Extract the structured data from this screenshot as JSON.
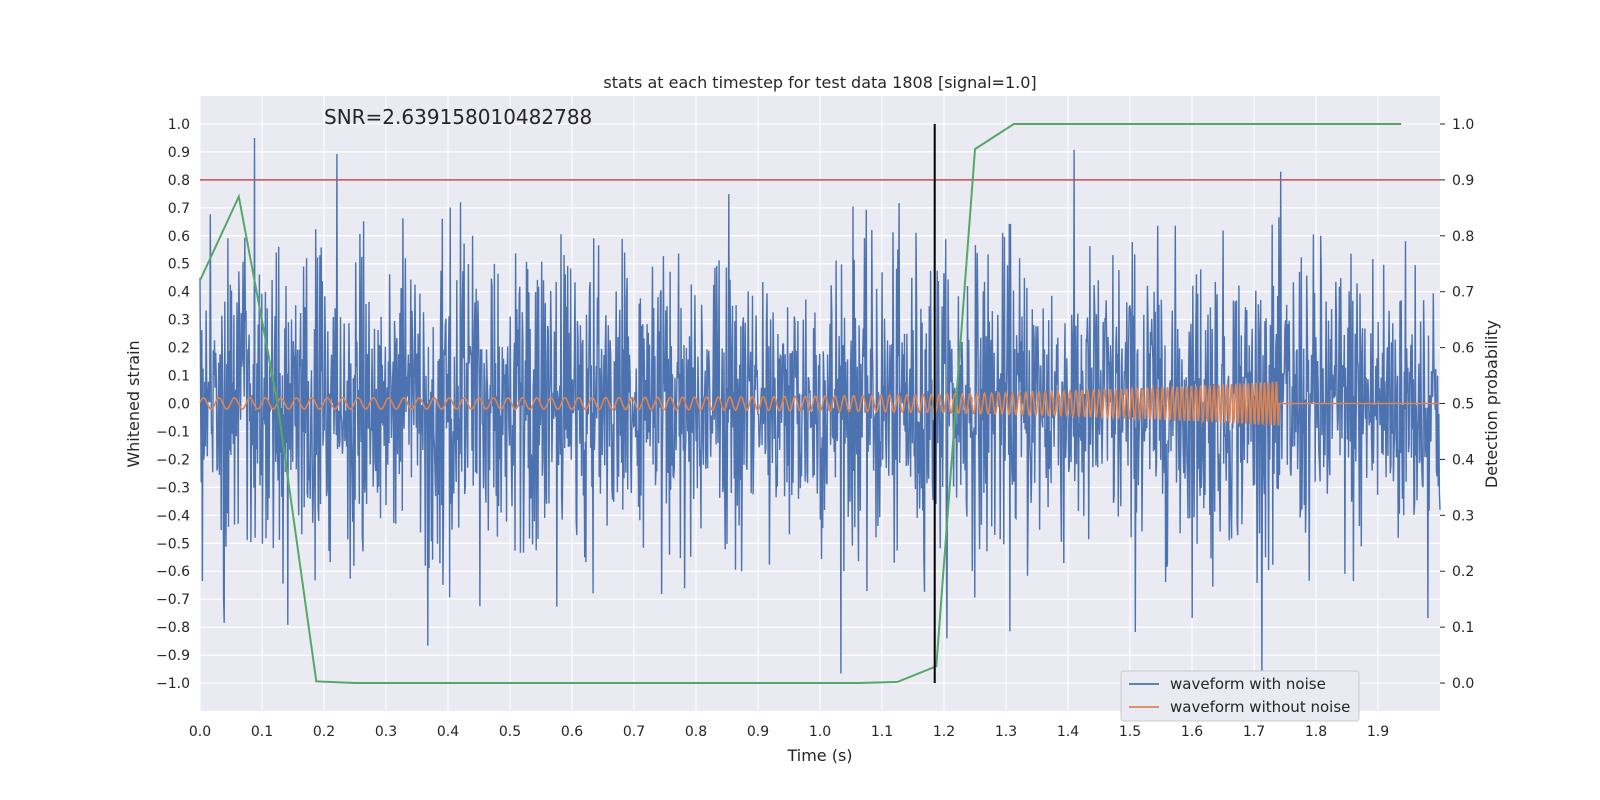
{
  "chart_data": {
    "type": "line",
    "title": "stats at each timestep for test data 1808 [signal=1.0]",
    "xlabel": "Time (s)",
    "ylabel": "Whitened strain",
    "y2label": "Detection probability",
    "xlim": [
      0.0,
      2.0
    ],
    "ylim": [
      -1.1,
      1.1
    ],
    "y2lim": [
      -0.05,
      1.05
    ],
    "xticks": [
      "0.0",
      "0.1",
      "0.2",
      "0.3",
      "0.4",
      "0.5",
      "0.6",
      "0.7",
      "0.8",
      "0.9",
      "1.0",
      "1.1",
      "1.2",
      "1.3",
      "1.4",
      "1.5",
      "1.6",
      "1.7",
      "1.8",
      "1.9"
    ],
    "yticks": [
      "1.0",
      "0.9",
      "0.8",
      "0.7",
      "0.6",
      "0.5",
      "0.4",
      "0.3",
      "0.2",
      "0.1",
      "0.0",
      "−0.1",
      "−0.2",
      "−0.3",
      "−0.4",
      "−0.5",
      "−0.6",
      "−0.7",
      "−0.8",
      "−0.9",
      "−1.0"
    ],
    "y2ticks": [
      "1.0",
      "0.9",
      "0.8",
      "0.7",
      "0.6",
      "0.5",
      "0.4",
      "0.3",
      "0.2",
      "0.1",
      "0.0"
    ],
    "annotation": "SNR=2.639158010482788",
    "grid": true,
    "legend_position": "bottom-right",
    "threshold_line": {
      "y2": 0.9,
      "color": "#c44e52"
    },
    "vertical_line": {
      "x": 1.185,
      "color": "#000000"
    },
    "series": [
      {
        "name": "waveform with noise",
        "color": "#4c72b0",
        "axis": "left",
        "description_points": {
          "x_start": 0.0,
          "x_end": 2.0,
          "n": 2048,
          "seed": 1808,
          "ymin": -1.0,
          "ymax": 1.0
        }
      },
      {
        "name": "waveform without noise",
        "color": "#dd8452",
        "axis": "left",
        "chirp": {
          "x_start": 0.0,
          "x_merge": 1.74,
          "amp_start": 0.02,
          "amp_end": 0.08,
          "f_start": 40,
          "f_end": 160
        }
      },
      {
        "name": "Detection probability",
        "color": "#55a868",
        "axis": "right",
        "x": [
          0.0,
          0.0625,
          0.125,
          0.1875,
          0.25,
          0.3125,
          0.375,
          0.4375,
          0.5,
          0.5625,
          0.625,
          0.6875,
          0.75,
          0.8125,
          0.875,
          0.9375,
          1.0,
          1.0625,
          1.125,
          1.1875,
          1.25,
          1.3125,
          1.375,
          1.4375,
          1.5,
          1.5625,
          1.625,
          1.6875,
          1.75,
          1.8125,
          1.875,
          1.9375
        ],
        "y": [
          0.72,
          0.87,
          0.5,
          0.003,
          0.0,
          0.0,
          0.0,
          0.0,
          0.0,
          0.0,
          0.0,
          0.0,
          0.0,
          0.0,
          0.0,
          0.0,
          0.0,
          0.0,
          0.002,
          0.03,
          0.955,
          1.0,
          1.0,
          1.0,
          1.0,
          1.0,
          1.0,
          1.0,
          1.0,
          1.0,
          1.0,
          1.0
        ]
      }
    ]
  }
}
